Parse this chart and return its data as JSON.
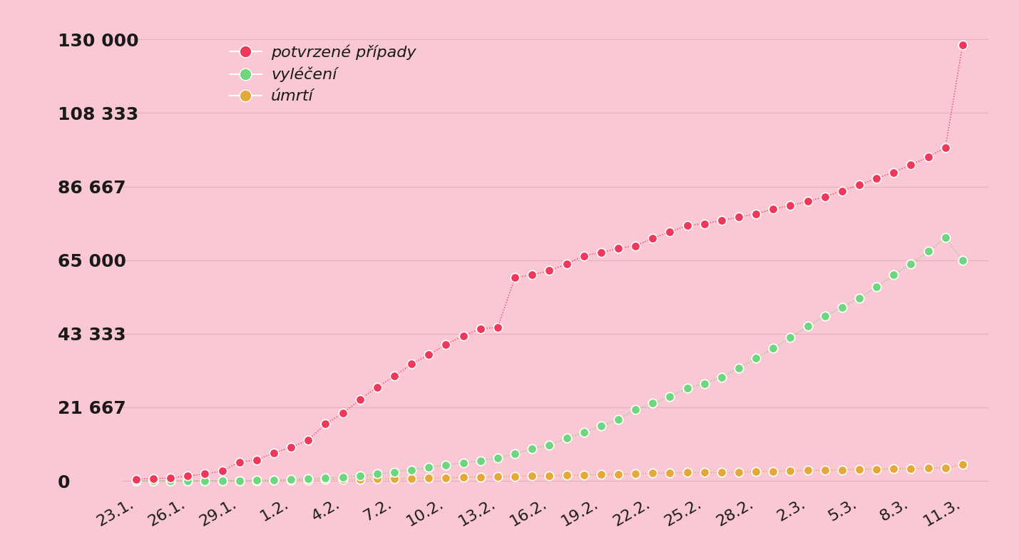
{
  "background_color": "#f9c8d4",
  "confirmed_color": "#f0395a",
  "recovered_color": "#6ed67e",
  "deaths_color": "#e5a83a",
  "legend_labels": [
    "potvrzené případy",
    "vyléčení",
    "úmrtí"
  ],
  "yticks": [
    0,
    21667,
    43333,
    65000,
    86667,
    108333,
    130000
  ],
  "ytick_labels": [
    "0",
    "21 667",
    "43 333",
    "65 000",
    "86 667",
    "108 333",
    "130 000"
  ],
  "xtick_labels": [
    "23.1.",
    "26.1.",
    "29.1.",
    "1.2.",
    "4.2.",
    "7.2.",
    "10.2.",
    "13.2.",
    "16.2.",
    "19.2.",
    "22.2.",
    "25.2.",
    "28.2.",
    "2.3.",
    "5.3.",
    "8.3.",
    "11.3."
  ],
  "confirmed": [
    548,
    643,
    920,
    1406,
    2075,
    2877,
    5578,
    6166,
    8234,
    9927,
    12038,
    16787,
    19881,
    23892,
    27635,
    30817,
    34391,
    37120,
    40150,
    42762,
    44802,
    45221,
    59804,
    60655,
    61888,
    63851,
    66292,
    67211,
    68500,
    69197,
    71429,
    73332,
    75184,
    75700,
    76677,
    77673,
    78651,
    80026,
    81109,
    82294,
    83652,
    85403,
    87137,
    89068,
    90869,
    93090,
    95333,
    98192,
    128343
  ],
  "recovered": [
    28,
    30,
    34,
    50,
    60,
    107,
    126,
    151,
    283,
    463,
    623,
    843,
    1115,
    1477,
    2050,
    2649,
    3281,
    3996,
    4740,
    5327,
    5958,
    6723,
    7977,
    9424,
    10600,
    12583,
    14348,
    16186,
    18177,
    20969,
    22886,
    24734,
    27323,
    28606,
    30565,
    33277,
    36117,
    39002,
    42162,
    45602,
    48468,
    51170,
    53797,
    57065,
    60655,
    63928,
    67560,
    71574,
    64956
  ],
  "deaths": [
    17,
    18,
    26,
    42,
    56,
    80,
    107,
    132,
    171,
    213,
    259,
    362,
    426,
    492,
    565,
    638,
    724,
    813,
    908,
    1013,
    1115,
    1261,
    1380,
    1488,
    1523,
    1666,
    1770,
    1868,
    2004,
    2118,
    2238,
    2360,
    2459,
    2469,
    2469,
    2619,
    2699,
    2858,
    2977,
    3085,
    3160,
    3254,
    3387,
    3491,
    3565,
    3655,
    3735,
    3862,
    4901
  ],
  "markersize": 9,
  "legend_fontsize": 16,
  "tick_fontsize": 16,
  "ytick_fontsize": 18
}
